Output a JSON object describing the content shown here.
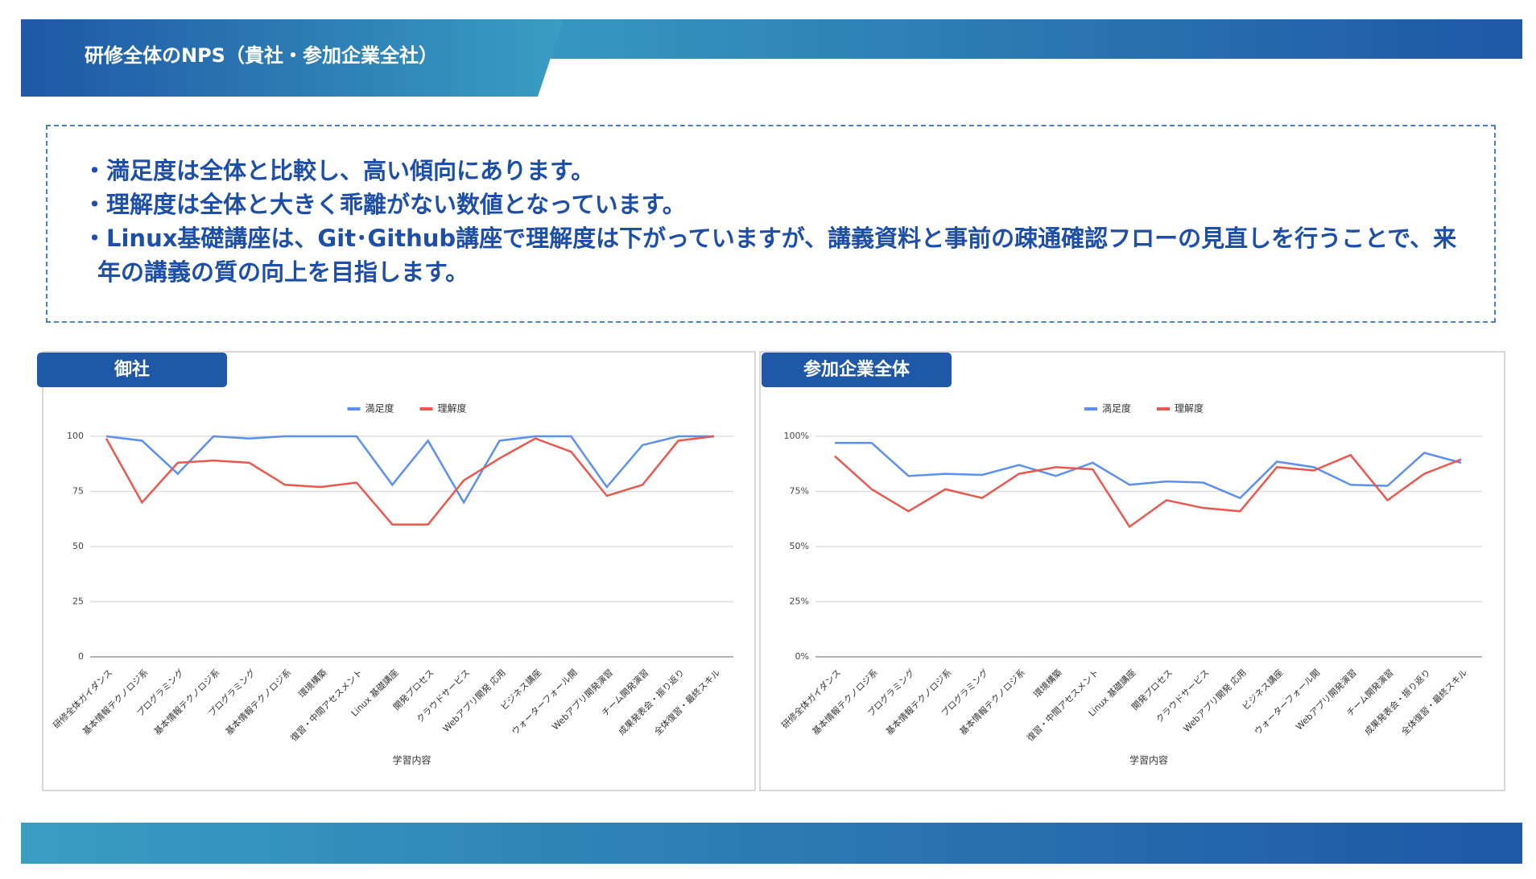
{
  "header": {
    "title": "研修全体のNPS（貴社・参加企業全社）"
  },
  "notes": [
    "・満足度は全体と比較し、高い傾向にあります。",
    "・理解度は全体と大きく乖離がない数値となっています。",
    "・Linux基礎講座は、Git･Github講座で理解度は下がっていますが、講義資料と事前の疎通確認フローの見直しを行うことで、来年の講義の質の向上を目指します。"
  ],
  "chart_data": [
    {
      "type": "line",
      "title": "御社",
      "x_label": "学習内容",
      "categories": [
        "研修全体ガイダンス",
        "基本情報テクノロジ系",
        "プログラミング",
        "基本情報テクノロジ系",
        "プログラミング",
        "基本情報テクノロジ系",
        "環境構築",
        "復習・中間アセスメント",
        "Linux 基礎講座",
        "開発プロセス",
        "クラウドサービス",
        "Webアプリ開発 応用",
        "ビジネス講座",
        "ウォーターフォール開",
        "Webアプリ開発演習",
        "チーム開発演習",
        "成果発表会・振り返り",
        "全体復習・最終スキル"
      ],
      "series": [
        {
          "name": "満足度",
          "color": "#5b8ff0",
          "values": [
            100,
            98,
            83,
            100,
            99,
            100,
            100,
            100,
            78,
            98,
            70,
            98,
            100,
            100,
            77,
            96,
            100,
            100
          ]
        },
        {
          "name": "理解度",
          "color": "#e8584e",
          "values": [
            99,
            70,
            88,
            89,
            88,
            78,
            77,
            79,
            60,
            60,
            80,
            90,
            99,
            93,
            73,
            78,
            98,
            100
          ]
        }
      ],
      "ylim": [
        0,
        100
      ],
      "yticks": [
        0,
        25,
        50,
        75,
        100
      ],
      "grid": true,
      "legend": "top"
    },
    {
      "type": "line",
      "title": "参加企業全体",
      "x_label": "学習内容",
      "categories": [
        "研修全体ガイダンス",
        "基本情報テクノロジ系",
        "プログラミング",
        "基本情報テクノロジ系",
        "プログラミング",
        "基本情報テクノロジ系",
        "環境構築",
        "復習・中間アセスメント",
        "Linux 基礎講座",
        "開発プロセス",
        "クラウドサービス",
        "Webアプリ開発 応用",
        "ビジネス講座",
        "ウォーターフォール開",
        "Webアプリ開発演習",
        "チーム開発演習",
        "成果発表会・振り返り",
        "全体復習・最終スキル"
      ],
      "series": [
        {
          "name": "満足度",
          "color": "#5b8ff0",
          "values": [
            97,
            97,
            82,
            83,
            82.5,
            87,
            82,
            88,
            78,
            79.5,
            79,
            72,
            88.5,
            86,
            78,
            77.5,
            92.5,
            88
          ]
        },
        {
          "name": "理解度",
          "color": "#e8584e",
          "values": [
            91,
            76,
            66,
            76,
            72,
            83,
            86,
            85,
            59,
            71,
            67.5,
            66,
            86,
            84.5,
            91.5,
            71,
            83,
            89.5
          ]
        }
      ],
      "ylim": [
        0,
        100
      ],
      "yticks": [
        {
          "value": 0,
          "label": "0%"
        },
        {
          "value": 25,
          "label": "25%"
        },
        {
          "value": 50,
          "label": "50%"
        },
        {
          "value": 75,
          "label": "75%"
        },
        {
          "value": 100,
          "label": "100%"
        }
      ],
      "grid": true,
      "legend": "top"
    }
  ]
}
